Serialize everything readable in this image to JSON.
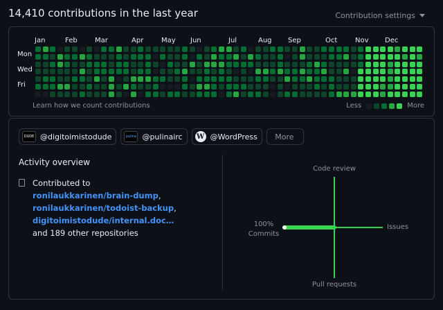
{
  "header": {
    "title": "14,410 contributions in the last year",
    "settings_label": "Contribution settings"
  },
  "calendar": {
    "months": [
      "Jan",
      "Feb",
      "Mar",
      "Apr",
      "May",
      "Jun",
      "Jul",
      "Aug",
      "Sep",
      "Oct",
      "Nov",
      "Dec"
    ],
    "days": [
      "Mon",
      "Wed",
      "Fri"
    ],
    "learn_link": "Learn how we count contributions",
    "legend_less": "Less",
    "legend_more": "More",
    "colors": [
      "#161b22",
      "#0e4429",
      "#006d32",
      "#26a641",
      "#39d353"
    ]
  },
  "orgs": [
    {
      "handle": "@digitoimistodude",
      "avatar_text": "DUDE"
    },
    {
      "handle": "@pulinairc",
      "avatar_text": "pulina"
    },
    {
      "handle": "@WordPress",
      "avatar_text": "W"
    }
  ],
  "more_label": "More",
  "activity": {
    "title": "Activity overview",
    "contributed_to": "Contributed to",
    "repos": [
      "ronilaukkarinen/brain-dump",
      "ronilaukkarinen/todoist-backup",
      "digitoimistodude/internal.doc…"
    ],
    "sep1": ",",
    "sep2": ",",
    "other": "and 189 other repositories"
  },
  "overview": {
    "code_review": "Code review",
    "issues": "Issues",
    "pull_requests": "Pull requests",
    "commits_pct": "100%",
    "commits": "Commits",
    "accent": "#39d353"
  }
}
